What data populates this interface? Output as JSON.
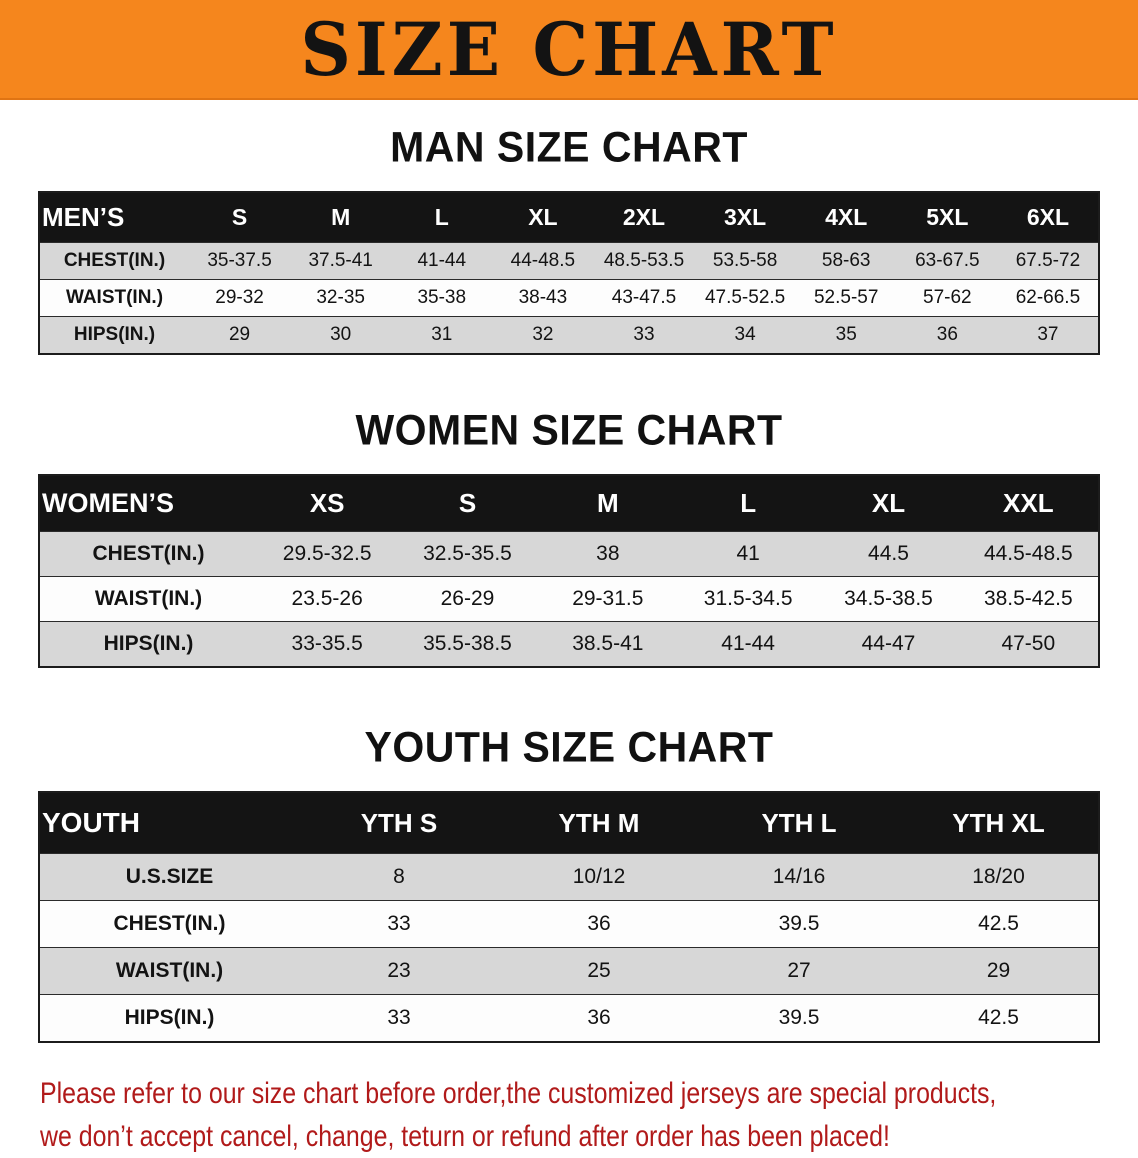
{
  "banner": {
    "title": "SIZE CHART",
    "bg_color": "#f5861d",
    "text_color": "#131313"
  },
  "sections": [
    {
      "heading": "MAN SIZE CHART",
      "table": {
        "header": [
          "MEN’S",
          "S",
          "M",
          "L",
          "XL",
          "2XL",
          "3XL",
          "4XL",
          "5XL",
          "6XL"
        ],
        "rows": [
          [
            "CHEST(IN.)",
            "35-37.5",
            "37.5-41",
            "41-44",
            "44-48.5",
            "48.5-53.5",
            "53.5-58",
            "58-63",
            "63-67.5",
            "67.5-72"
          ],
          [
            "WAIST(IN.)",
            "29-32",
            "32-35",
            "35-38",
            "38-43",
            "43-47.5",
            "47.5-52.5",
            "52.5-57",
            "57-62",
            "62-66.5"
          ],
          [
            "HIPS(IN.)",
            "29",
            "30",
            "31",
            "32",
            "33",
            "34",
            "35",
            "36",
            "37"
          ]
        ]
      }
    },
    {
      "heading": "WOMEN SIZE CHART",
      "table": {
        "header": [
          "WOMEN’S",
          "XS",
          "S",
          "M",
          "L",
          "XL",
          "XXL"
        ],
        "rows": [
          [
            "CHEST(IN.)",
            "29.5-32.5",
            "32.5-35.5",
            "38",
            "41",
            "44.5",
            "44.5-48.5"
          ],
          [
            "WAIST(IN.)",
            "23.5-26",
            "26-29",
            "29-31.5",
            "31.5-34.5",
            "34.5-38.5",
            "38.5-42.5"
          ],
          [
            "HIPS(IN.)",
            "33-35.5",
            "35.5-38.5",
            "38.5-41",
            "41-44",
            "44-47",
            "47-50"
          ]
        ]
      }
    },
    {
      "heading": "YOUTH SIZE CHART",
      "table": {
        "header": [
          "YOUTH",
          "YTH S",
          "YTH M",
          "YTH L",
          "YTH XL"
        ],
        "rows": [
          [
            "U.S.SIZE",
            "8",
            "10/12",
            "14/16",
            "18/20"
          ],
          [
            "CHEST(IN.)",
            "33",
            "36",
            "39.5",
            "42.5"
          ],
          [
            "WAIST(IN.)",
            "23",
            "25",
            "27",
            "29"
          ],
          [
            "HIPS(IN.)",
            "33",
            "36",
            "39.5",
            "42.5"
          ]
        ]
      }
    }
  ],
  "disclaimer": {
    "line1": "Please refer to our size chart before order,the customized jerseys are special products,",
    "line2": "we don’t accept cancel, change, teturn or refund after order has been placed!",
    "color": "#b11a1a"
  }
}
